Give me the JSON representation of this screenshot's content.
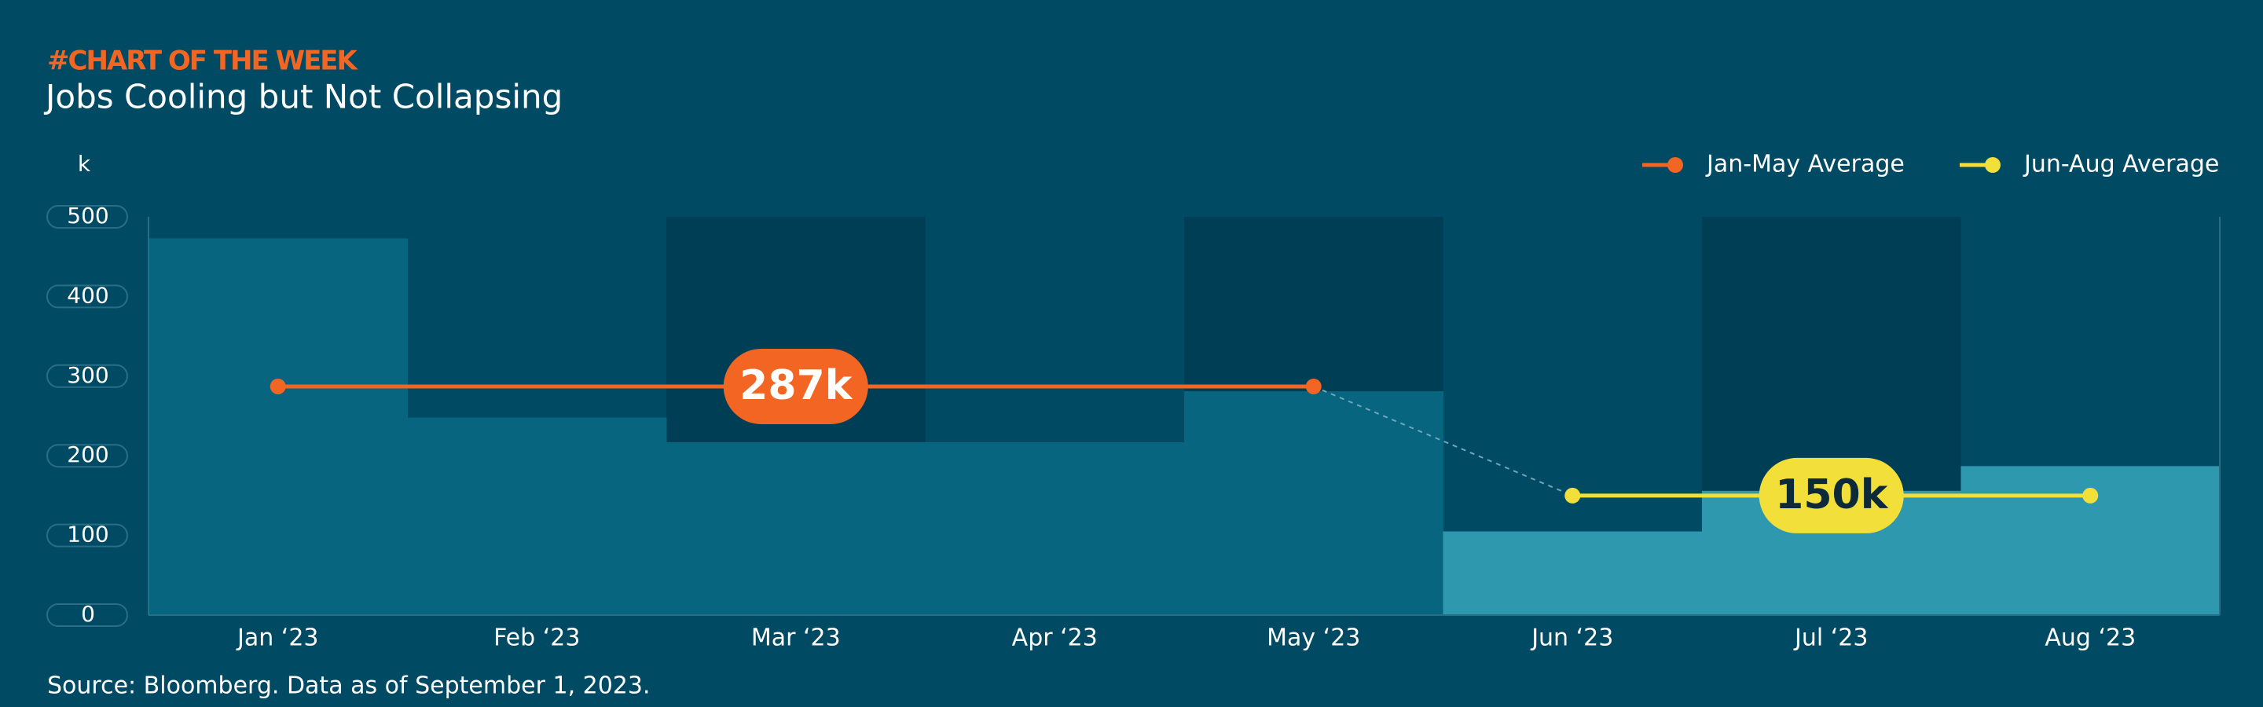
{
  "chart_data": {
    "type": "bar",
    "kicker": "#CHART OF THE WEEK",
    "title": "Jobs Cooling but Not Collapsing",
    "y_unit": "k",
    "source": "Source: Bloomberg. Data as of September 1, 2023.",
    "categories": [
      "Jan ‘23",
      "Feb ‘23",
      "Mar ‘23",
      "Apr ‘23",
      "May ‘23",
      "Jun ‘23",
      "Jul ‘23",
      "Aug ‘23"
    ],
    "values": [
      473,
      248,
      217,
      217,
      281,
      105,
      156,
      187
    ],
    "colors": [
      "#07657f",
      "#07657f",
      "#07657f",
      "#07657f",
      "#07657f",
      "#2e99ae",
      "#2e99ae",
      "#2e99ae"
    ],
    "ylim": [
      0,
      500
    ],
    "yticks": [
      0,
      100,
      200,
      300,
      400,
      500
    ],
    "averages": [
      {
        "name": "Jan-May Average",
        "color": "#f26522",
        "value": 287,
        "value_label": "287k",
        "span": [
          0,
          4
        ]
      },
      {
        "name": "Jun-Aug Average",
        "color": "#f3df3a",
        "value": 150,
        "value_label": "150k",
        "span": [
          5,
          7
        ]
      }
    ]
  }
}
